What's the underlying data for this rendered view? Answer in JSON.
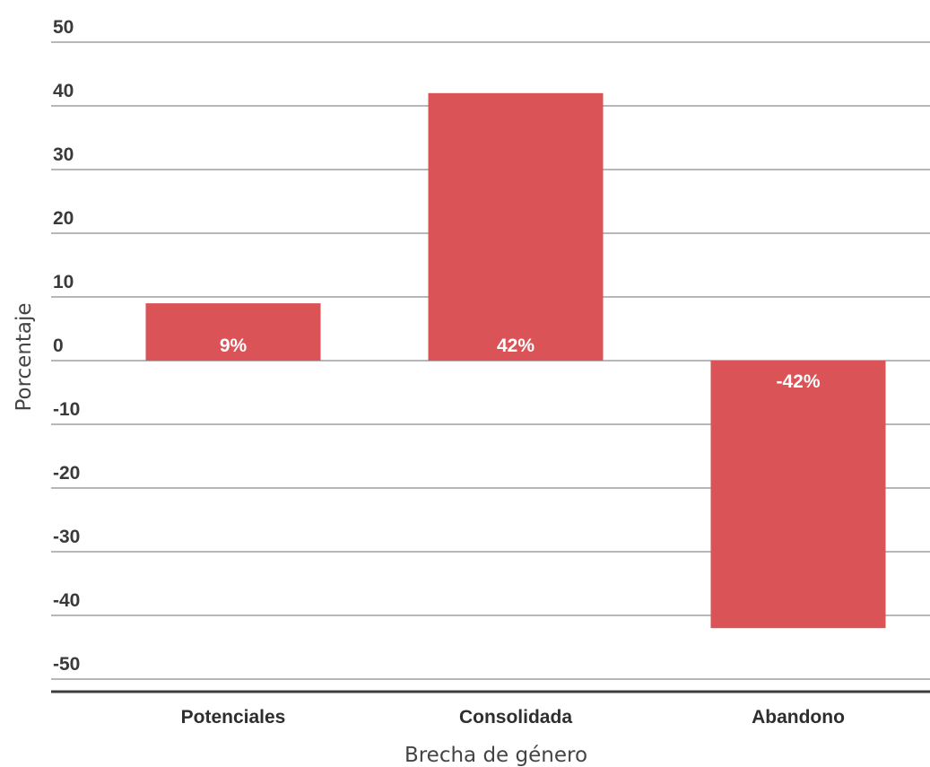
{
  "chart_data": {
    "type": "bar",
    "categories": [
      "Potenciales",
      "Consolidada",
      "Abandono"
    ],
    "values": [
      9,
      42,
      -42
    ],
    "data_labels": [
      "9%",
      "42%",
      "-42%"
    ],
    "title": "",
    "xlabel": "Brecha de género",
    "ylabel": "Porcentaje",
    "ylim": [
      -50,
      50
    ],
    "yticks": [
      50,
      40,
      30,
      20,
      10,
      0,
      -10,
      -20,
      -30,
      -40,
      -50
    ],
    "bar_color": "#d95357",
    "grid": true,
    "legend": "none"
  }
}
